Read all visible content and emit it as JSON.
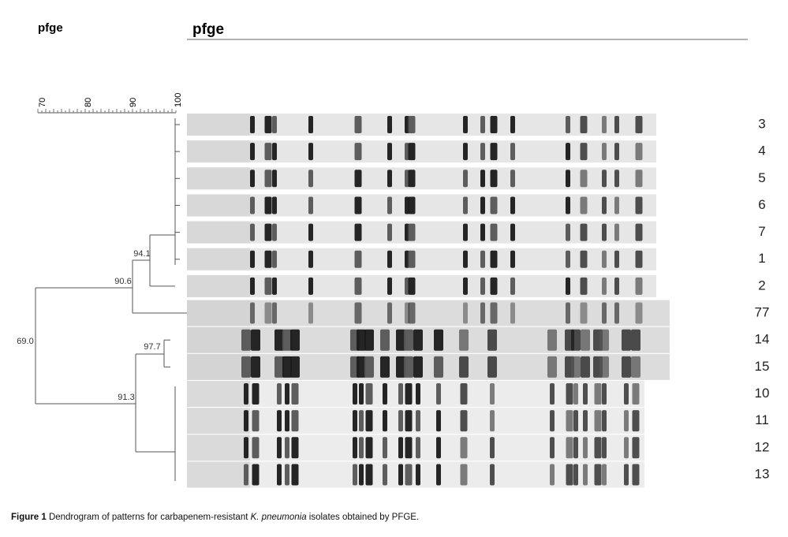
{
  "header": {
    "left_title": "pfge",
    "right_title": "pfge"
  },
  "scale": {
    "ticks": [
      "70",
      "80",
      "90",
      "100"
    ]
  },
  "dendrogram": {
    "nodes": [
      {
        "label": "94.1"
      },
      {
        "label": "90.6"
      },
      {
        "label": "69.0"
      },
      {
        "label": "97.7"
      },
      {
        "label": "91.3"
      }
    ]
  },
  "lanes": [
    "3",
    "4",
    "5",
    "6",
    "7",
    "1",
    "2",
    "77",
    "14",
    "15",
    "10",
    "11",
    "12",
    "13"
  ],
  "caption": {
    "label": "Figure 1",
    "text_before": "Dendrogram of patterns for carbapenem-resistant",
    "species": "K. pneumonia",
    "text_after": "isolates obtained by PFGE."
  }
}
